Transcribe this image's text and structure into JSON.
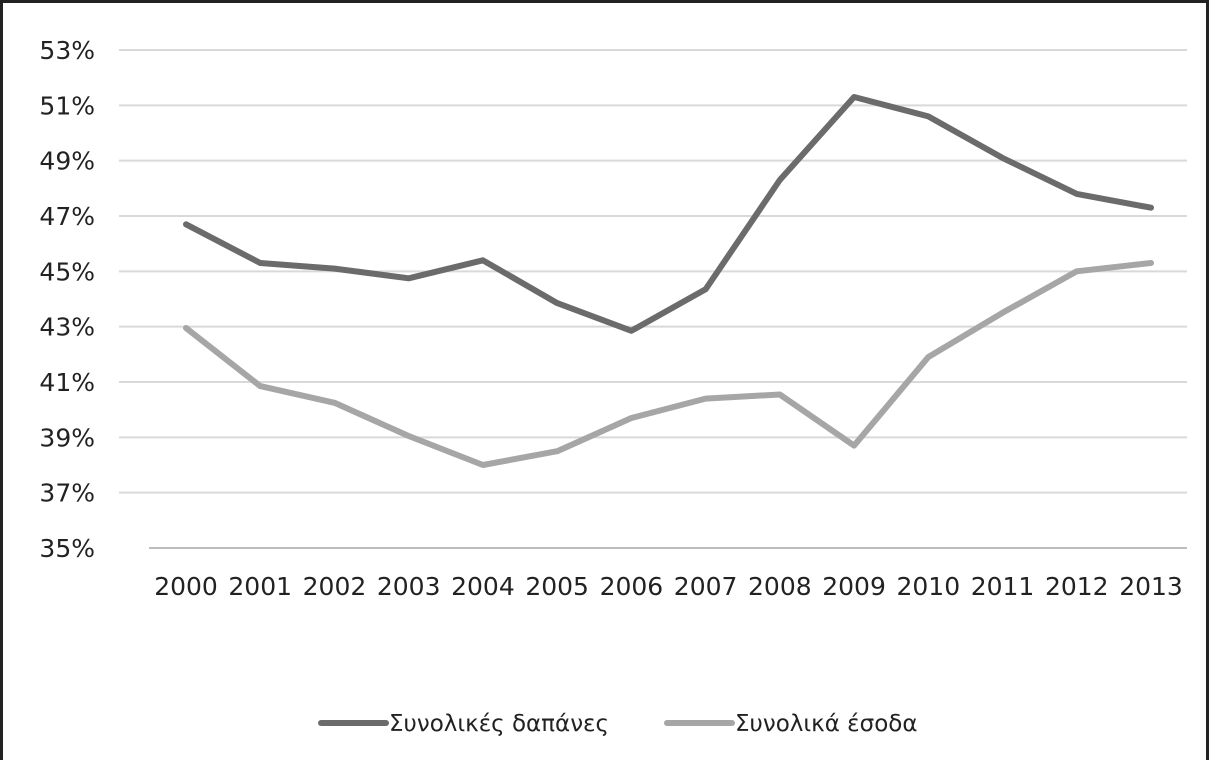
{
  "chart_data": {
    "type": "line",
    "title": "",
    "xlabel": "",
    "ylabel": "",
    "categories": [
      "2000",
      "2001",
      "2002",
      "2003",
      "2004",
      "2005",
      "2006",
      "2007",
      "2008",
      "2009",
      "2010",
      "2011",
      "2012",
      "2013"
    ],
    "y_ticks": [
      "53%",
      "51%",
      "49%",
      "47%",
      "45%",
      "43%",
      "41%",
      "39%",
      "37%",
      "35%"
    ],
    "ylim": [
      35,
      53
    ],
    "y_unit": "%",
    "grid": true,
    "legend_position": "bottom",
    "series": [
      {
        "name": "Συνολικές δαπάνες",
        "color": "#6b6b6b",
        "values": [
          46.7,
          45.3,
          45.1,
          44.75,
          45.4,
          43.85,
          42.85,
          44.35,
          48.3,
          51.3,
          50.6,
          49.1,
          47.8,
          47.3
        ]
      },
      {
        "name": "Συνολικά έσοδα",
        "color": "#a6a6a6",
        "values": [
          42.95,
          40.85,
          40.25,
          39.05,
          38.0,
          38.5,
          39.7,
          40.4,
          40.55,
          38.7,
          41.9,
          43.5,
          45.0,
          45.3
        ]
      }
    ]
  }
}
